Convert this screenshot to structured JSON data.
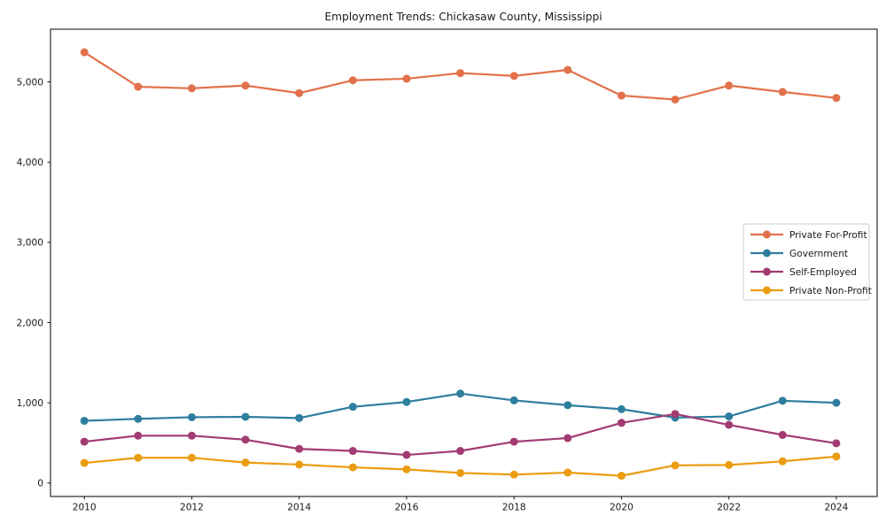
{
  "chart_data": {
    "type": "line",
    "title": "Employment Trends: Chickasaw County, Mississippi",
    "xlabel": "",
    "ylabel": "",
    "x": [
      2010,
      2011,
      2012,
      2013,
      2014,
      2015,
      2016,
      2017,
      2018,
      2019,
      2020,
      2021,
      2022,
      2023,
      2024
    ],
    "series": [
      {
        "name": "Private For-Profit",
        "color": "#e2714b",
        "values": [
          5370,
          4940,
          4920,
          4955,
          4860,
          5020,
          5040,
          5110,
          5075,
          5150,
          4830,
          4780,
          4955,
          4875,
          4800
        ]
      },
      {
        "name": "Government",
        "color": "#2e7e9e",
        "values": [
          775,
          800,
          820,
          825,
          810,
          950,
          1010,
          1115,
          1030,
          970,
          920,
          815,
          830,
          1025,
          1000
        ]
      },
      {
        "name": "Self-Employed",
        "color": "#a23b72",
        "values": [
          515,
          590,
          590,
          540,
          425,
          400,
          350,
          400,
          515,
          560,
          750,
          860,
          725,
          600,
          495
        ]
      },
      {
        "name": "Private Non-Profit",
        "color": "#eb9c0f",
        "values": [
          250,
          315,
          315,
          255,
          230,
          195,
          170,
          125,
          105,
          130,
          90,
          220,
          225,
          270,
          330
        ]
      }
    ],
    "xticks": [
      2010,
      2012,
      2014,
      2016,
      2018,
      2020,
      2022,
      2024
    ],
    "xtick_labels": [
      "2010",
      "2012",
      "2014",
      "2016",
      "2018",
      "2020",
      "2022",
      "2024"
    ],
    "yticks": [
      0,
      1000,
      2000,
      3000,
      4000,
      5000
    ],
    "ytick_labels": [
      "0",
      "1,000",
      "2,000",
      "3,000",
      "4,000",
      "5,000"
    ],
    "xlim": [
      2009.37,
      2024.76
    ],
    "ylim": [
      -168,
      5657
    ],
    "grid": false,
    "legend_position": "center right",
    "marker": "o",
    "spine_color": "#000000",
    "legend_border_color": "#cccccc",
    "background_color": "#ffffff"
  }
}
